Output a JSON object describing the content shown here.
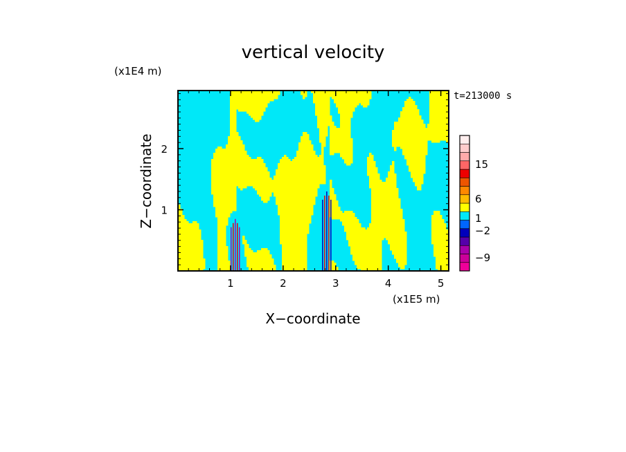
{
  "chart_data": {
    "type": "heatmap",
    "title": "vertical velocity",
    "xlabel": "X−coordinate",
    "ylabel": "Z−coordinate",
    "x_unit": "(x1E5 m)",
    "y_unit": "(x1E4 m)",
    "time_label": "t=213000 s",
    "xlim": [
      0,
      5.15
    ],
    "ylim": [
      0,
      2.95
    ],
    "x_ticks": [
      {
        "v": 1,
        "label": "1"
      },
      {
        "v": 2,
        "label": "2"
      },
      {
        "v": 3,
        "label": "3"
      },
      {
        "v": 4,
        "label": "4"
      },
      {
        "v": 5,
        "label": "5"
      }
    ],
    "y_ticks": [
      {
        "v": 1,
        "label": "1"
      },
      {
        "v": 2,
        "label": "2"
      }
    ],
    "field_colors": {
      "positive": "#ffff00",
      "negative": "#00e8f8"
    },
    "colorbar": {
      "colors": [
        "#ee0099",
        "#cc0099",
        "#aa00aa",
        "#5500aa",
        "#0000bb",
        "#0066ff",
        "#00e8f8",
        "#ffff00",
        "#ffbb00",
        "#ff8800",
        "#ee5500",
        "#ee0000",
        "#ff6666",
        "#ffaaaa",
        "#ffcccc",
        "#ffeeee"
      ],
      "labels": [
        {
          "value": 15,
          "label": "15"
        },
        {
          "value": 6,
          "label": "6"
        },
        {
          "value": 1,
          "label": "1"
        },
        {
          "value": -2,
          "label": "−2"
        },
        {
          "value": -9,
          "label": "−9"
        }
      ]
    },
    "updrafts": [
      {
        "x": 1.08,
        "z_top": 0.85,
        "color": "#aa00aa"
      },
      {
        "x": 2.82,
        "z_top": 1.3,
        "color": "#0000bb"
      }
    ],
    "grid": false
  }
}
